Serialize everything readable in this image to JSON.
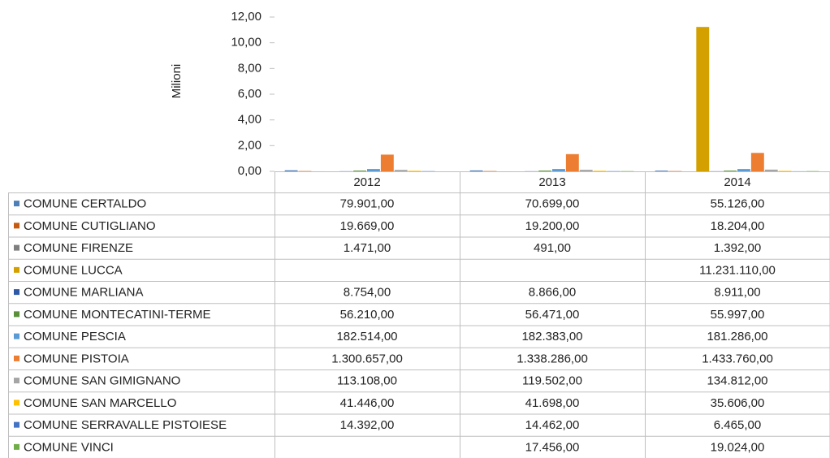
{
  "chart_data": {
    "type": "bar",
    "y_label": "Milioni",
    "categories": [
      "2012",
      "2013",
      "2014"
    ],
    "ylim": [
      0,
      12
    ],
    "yticks": [
      {
        "value": 0,
        "label": "0,00"
      },
      {
        "value": 2,
        "label": "2,00"
      },
      {
        "value": 4,
        "label": "4,00"
      },
      {
        "value": 6,
        "label": "6,00"
      },
      {
        "value": 8,
        "label": "8,00"
      },
      {
        "value": 10,
        "label": "10,00"
      },
      {
        "value": 12,
        "label": "12,00"
      }
    ],
    "series": [
      {
        "name": "COMUNE CERTALDO",
        "color": "#4f7fb8",
        "values": [
          0.079901,
          0.070699,
          0.055126
        ],
        "value_labels": [
          "79.901,00",
          "70.699,00",
          "55.126,00"
        ]
      },
      {
        "name": "COMUNE CUTIGLIANO",
        "color": "#c55a11",
        "values": [
          0.019669,
          0.0192,
          0.018204
        ],
        "value_labels": [
          "19.669,00",
          "19.200,00",
          "18.204,00"
        ]
      },
      {
        "name": "COMUNE FIRENZE",
        "color": "#7f7f7f",
        "values": [
          0.001471,
          0.000491,
          0.001392
        ],
        "value_labels": [
          "1.471,00",
          "491,00",
          "1.392,00"
        ]
      },
      {
        "name": "COMUNE LUCCA",
        "color": "#d4a000",
        "values": [
          null,
          null,
          11.23111
        ],
        "value_labels": [
          null,
          null,
          "11.231.110,00"
        ]
      },
      {
        "name": "COMUNE MARLIANA",
        "color": "#2e59a8",
        "values": [
          0.008754,
          0.008866,
          0.008911
        ],
        "value_labels": [
          "8.754,00",
          "8.866,00",
          "8.911,00"
        ]
      },
      {
        "name": "COMUNE MONTECATINI-TERME",
        "color": "#5b8f3a",
        "values": [
          0.05621,
          0.056471,
          0.055997
        ],
        "value_labels": [
          "56.210,00",
          "56.471,00",
          "55.997,00"
        ]
      },
      {
        "name": "COMUNE PESCIA",
        "color": "#5b9bd5",
        "values": [
          0.182514,
          0.182383,
          0.181286
        ],
        "value_labels": [
          "182.514,00",
          "182.383,00",
          "181.286,00"
        ]
      },
      {
        "name": "COMUNE PISTOIA",
        "color": "#ed7d31",
        "values": [
          1.300657,
          1.338286,
          1.43376
        ],
        "value_labels": [
          "1.300.657,00",
          "1.338.286,00",
          "1.433.760,00"
        ]
      },
      {
        "name": "COMUNE SAN GIMIGNANO",
        "color": "#a5a5a5",
        "values": [
          0.113108,
          0.119502,
          0.134812
        ],
        "value_labels": [
          "113.108,00",
          "119.502,00",
          "134.812,00"
        ]
      },
      {
        "name": "COMUNE SAN MARCELLO",
        "color": "#ffc000",
        "values": [
          0.041446,
          0.041698,
          0.035606
        ],
        "value_labels": [
          "41.446,00",
          "41.698,00",
          "35.606,00"
        ]
      },
      {
        "name": "COMUNE SERRAVALLE PISTOIESE",
        "color": "#4472c4",
        "values": [
          0.014392,
          0.014462,
          0.006465
        ],
        "value_labels": [
          "14.392,00",
          "14.462,00",
          "6.465,00"
        ]
      },
      {
        "name": "COMUNE VINCI",
        "color": "#70ad47",
        "values": [
          null,
          0.017456,
          0.019024
        ],
        "value_labels": [
          null,
          "17.456,00",
          "19.024,00"
        ]
      }
    ]
  }
}
